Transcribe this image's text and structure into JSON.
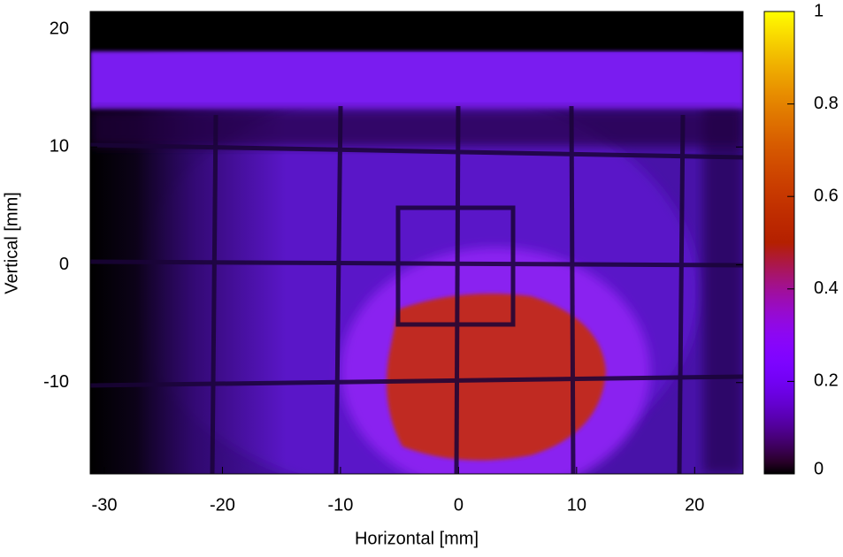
{
  "chart_data": {
    "type": "heatmap",
    "x_label": "Horizontal [mm]",
    "y_label": "Vertical [mm]",
    "xlim": [
      -31.2,
      24.1
    ],
    "xticks": [
      -30,
      -20,
      -10,
      0,
      10,
      20
    ],
    "ylim": [
      -17.75,
      21.5
    ],
    "yticks": [
      -10,
      0,
      10,
      20
    ],
    "clim": [
      0,
      1
    ],
    "cticks": [
      0,
      0.2,
      0.4,
      0.6,
      0.8,
      1
    ]
  }
}
